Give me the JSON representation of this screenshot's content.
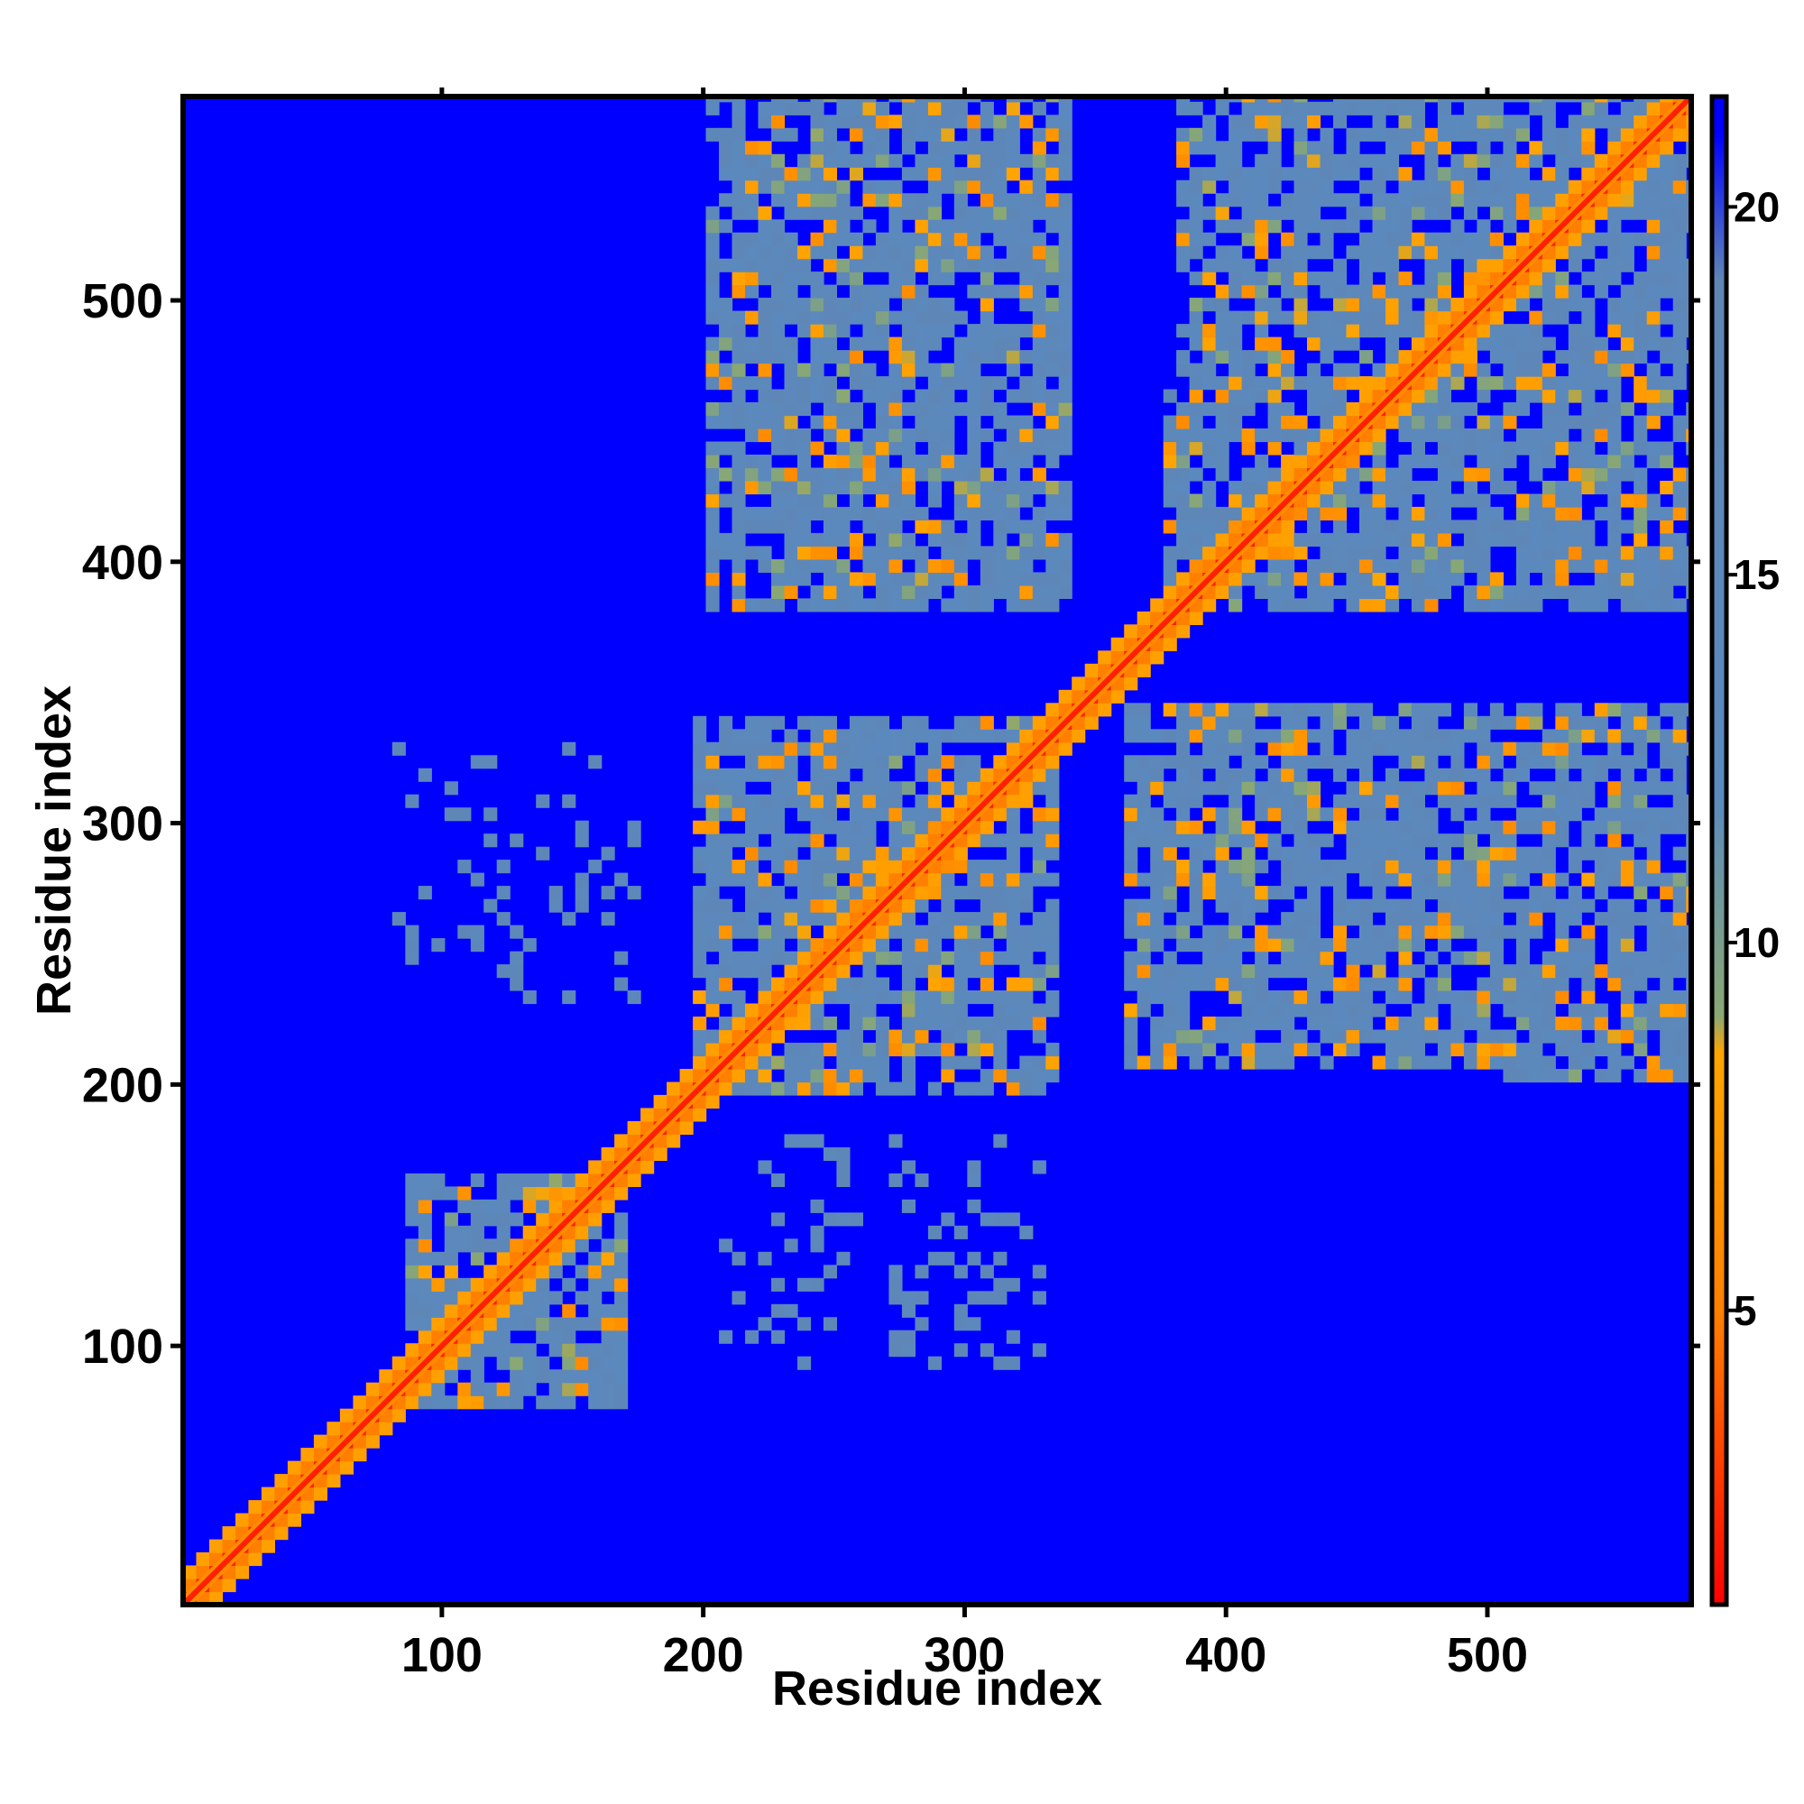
{
  "chart_data": {
    "type": "heatmap",
    "title": "",
    "xlabel": "Residue index",
    "ylabel": "Residue index",
    "xlim": [
      1,
      578
    ],
    "ylim": [
      1,
      578
    ],
    "x_ticks": [
      100,
      200,
      300,
      400,
      500
    ],
    "y_ticks": [
      100,
      200,
      300,
      400,
      500
    ],
    "colorbar": {
      "range": [
        1,
        21.5
      ],
      "ticks": [
        5,
        10,
        15,
        20
      ],
      "stops": [
        {
          "value": 1,
          "color": "#ff0000"
        },
        {
          "value": 5,
          "color": "#ff8000"
        },
        {
          "value": 8.5,
          "color": "#ffa500"
        },
        {
          "value": 9,
          "color": "#8aa873"
        },
        {
          "value": 12,
          "color": "#5a8abf"
        },
        {
          "value": 19,
          "color": "#5f86b6"
        },
        {
          "value": 21,
          "color": "#0000ff"
        }
      ]
    },
    "background_value": 21.5,
    "background_color": "#0000ff",
    "diagonal": {
      "from": 1,
      "to": 578,
      "value": 2
    },
    "contact_blocks": [
      {
        "x": [
          82,
          170
        ],
        "y": [
          75,
          165
        ]
      },
      {
        "x": [
          195,
          335
        ],
        "y": [
          195,
          340
        ]
      },
      {
        "x": [
          375,
          468
        ],
        "y": [
          380,
          470
        ]
      },
      {
        "x": [
          465,
          578
        ],
        "y": [
          465,
          578
        ]
      },
      {
        "x": [
          200,
          340
        ],
        "y": [
          380,
          578
        ]
      },
      {
        "x": [
          380,
          578
        ],
        "y": [
          380,
          578
        ]
      },
      {
        "x": [
          360,
          578
        ],
        "y": [
          205,
          345
        ]
      },
      {
        "x": [
          505,
          578
        ],
        "y": [
          200,
          340
        ]
      }
    ],
    "sparse_regions": [
      {
        "x": [
          80,
          175
        ],
        "y": [
          230,
          330
        ]
      },
      {
        "x": [
          205,
          330
        ],
        "y": [
          90,
          180
        ]
      }
    ]
  }
}
